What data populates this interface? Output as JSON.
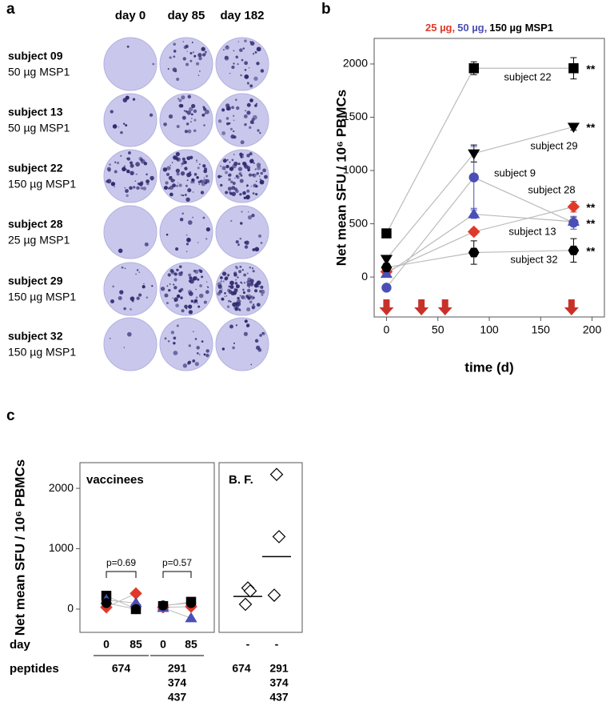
{
  "panel_labels": [
    "a",
    "b",
    "c"
  ],
  "panel_a": {
    "columns": [
      "day 0",
      "day 85",
      "day 182"
    ],
    "rows": [
      {
        "subject": "subject 09",
        "dose": "50 µg MSP1"
      },
      {
        "subject": "subject 13",
        "dose": "50 µg MSP1"
      },
      {
        "subject": "subject 22",
        "dose": "150 µg MSP1"
      },
      {
        "subject": "subject 28",
        "dose": "25 µg MSP1"
      },
      {
        "subject": "subject 29",
        "dose": "150 µg MSP1"
      },
      {
        "subject": "subject 32",
        "dose": "150 µg MSP1"
      }
    ]
  },
  "chart_data": [
    {
      "type": "line",
      "title_parts": [
        {
          "text": "25 µg,",
          "color": "#e0392a"
        },
        {
          "text": "50 µg,",
          "color": "#4b4fb5"
        },
        {
          "text": "150 µg MSP1",
          "color": "#000000"
        }
      ],
      "ylabel": "Net mean SFU / 10⁶ PBMCs",
      "xlabel": "time (d)",
      "x": [
        0,
        85,
        182
      ],
      "xlim": [
        -12,
        212
      ],
      "xticks": [
        0,
        50,
        100,
        150,
        200
      ],
      "ylim": [
        -375,
        2240
      ],
      "yticks": [
        0,
        500,
        1000,
        1500,
        2000
      ],
      "line_color": "#bbbbbb",
      "vaccination_days": [
        0,
        34,
        57,
        180
      ],
      "vaccination_color": "#c8312a",
      "series": [
        {
          "name": "subject 22",
          "marker": "square",
          "color": "#000000",
          "values": [
            410,
            1960,
            1960
          ],
          "errors": [
            null,
            60,
            100
          ],
          "significance": "**"
        },
        {
          "name": "subject 29",
          "marker": "triangle-down",
          "color": "#000000",
          "values": [
            170,
            1160,
            1410
          ],
          "errors": [
            null,
            80,
            30
          ],
          "significance": "**"
        },
        {
          "name": "subject 9",
          "marker": "circle",
          "color": "#4b4fb5",
          "values": [
            -100,
            935,
            510
          ],
          "errors": [
            null,
            290,
            60
          ],
          "significance": "**"
        },
        {
          "name": "subject 28",
          "marker": "diamond",
          "color": "#e0392a",
          "values": [
            50,
            425,
            660
          ],
          "errors": [
            null,
            30,
            50
          ],
          "significance": "**"
        },
        {
          "name": "subject 13",
          "marker": "triangle-up",
          "color": "#4b4fb5",
          "values": [
            30,
            590,
            520
          ],
          "errors": [
            null,
            40,
            40
          ]
        },
        {
          "name": "subject 32",
          "marker": "hexagon",
          "color": "#000000",
          "values": [
            90,
            230,
            250
          ],
          "errors": [
            null,
            110,
            110
          ],
          "significance": "**"
        }
      ]
    },
    {
      "type": "paired",
      "title": "vaccinees",
      "ylabel": "Net mean SFU / 10⁶ PBMCs",
      "ylim": [
        -385,
        2425
      ],
      "yticks": [
        0,
        1000,
        2000
      ],
      "row_labels": [
        "day",
        "peptides"
      ],
      "groups": [
        {
          "days": [
            "0",
            "85"
          ],
          "peptides": [
            "674"
          ],
          "p_value": "p=0.69"
        },
        {
          "days": [
            "0",
            "85"
          ],
          "peptides": [
            "291",
            "374",
            "437"
          ],
          "p_value": "p=0.57"
        }
      ],
      "line_color": "#bbbbbb",
      "series": [
        {
          "marker": "square",
          "color": "#000000",
          "values": [
            [
              220,
              0
            ],
            [
              50,
              120
            ]
          ]
        },
        {
          "marker": "diamond",
          "color": "#e0392a",
          "values": [
            [
              30,
              260
            ],
            [
              30,
              40
            ]
          ]
        },
        {
          "marker": "triangle-up",
          "color": "#4b4fb5",
          "values": [
            [
              150,
              100
            ],
            [
              20,
              -150
            ]
          ]
        },
        {
          "marker": "circle",
          "color": "#000000",
          "values": [
            [
              100,
              0
            ],
            [
              60,
              100
            ]
          ]
        }
      ]
    },
    {
      "type": "strip",
      "title": "B. F.",
      "ylim": [
        -385,
        2425
      ],
      "categories": [
        "-",
        "-"
      ],
      "peptides": [
        [
          "674"
        ],
        [
          "291",
          "374",
          "437"
        ]
      ],
      "marker": "diamond-open",
      "color": "#000000",
      "values": [
        [
          350,
          300,
          80
        ],
        [
          2230,
          1200,
          230
        ]
      ],
      "means": [
        210,
        870
      ]
    }
  ]
}
